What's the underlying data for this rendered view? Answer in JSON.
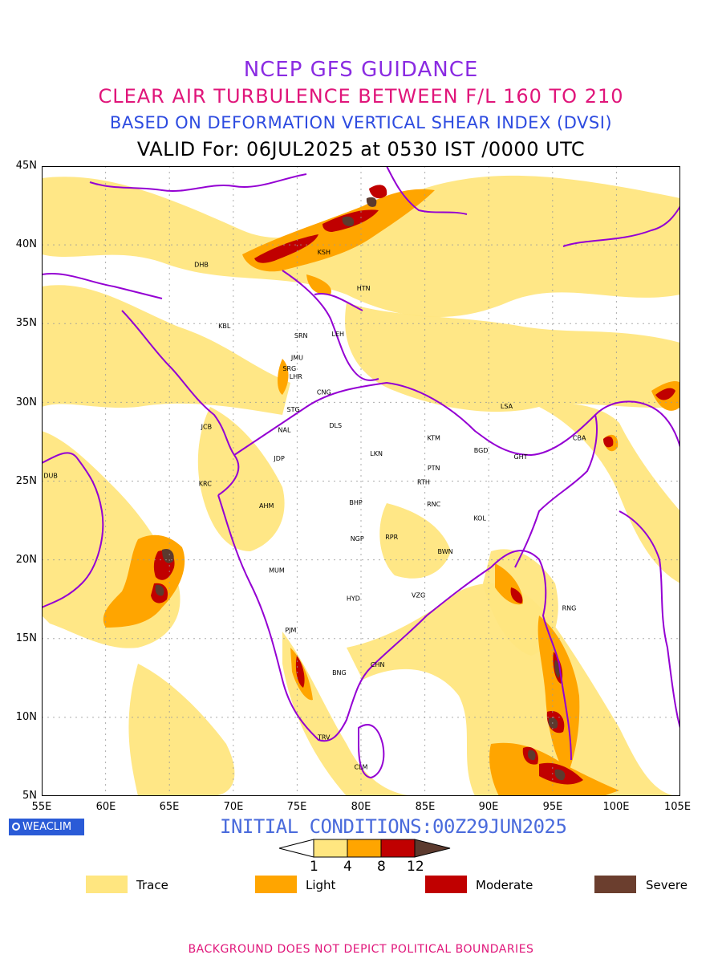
{
  "header": {
    "title": "NCEP GFS GUIDANCE",
    "subtitle": "CLEAR AIR TURBULENCE BETWEEN F/L 160 TO 210",
    "index_line": "BASED ON DEFORMATION VERTICAL SHEAR INDEX (DVSI)",
    "valid_line": "VALID For: 06JUL2025 at 0530 IST /0000 UTC"
  },
  "map": {
    "lat_labels": [
      "45N",
      "40N",
      "35N",
      "30N",
      "25N",
      "20N",
      "15N",
      "10N",
      "5N"
    ],
    "lon_labels": [
      "55E",
      "60E",
      "65E",
      "70E",
      "75E",
      "80E",
      "85E",
      "90E",
      "95E",
      "100E",
      "105E"
    ],
    "lon_range": [
      55,
      105
    ],
    "lat_range": [
      5,
      45
    ],
    "boundary_color": "#9400d3",
    "cities": [
      {
        "code": "KSH",
        "lon": 77.1,
        "lat": 39.4
      },
      {
        "code": "DHB",
        "lon": 67.5,
        "lat": 38.6
      },
      {
        "code": "HTN",
        "lon": 80.2,
        "lat": 37.1
      },
      {
        "code": "KBL",
        "lon": 69.3,
        "lat": 34.7
      },
      {
        "code": "SRN",
        "lon": 75.3,
        "lat": 34.1
      },
      {
        "code": "LEH",
        "lon": 78.2,
        "lat": 34.2
      },
      {
        "code": "JMU",
        "lon": 75.0,
        "lat": 32.7
      },
      {
        "code": "SRG",
        "lon": 74.4,
        "lat": 32.0
      },
      {
        "code": "LHR",
        "lon": 74.9,
        "lat": 31.5
      },
      {
        "code": "CNG",
        "lon": 77.1,
        "lat": 30.5
      },
      {
        "code": "LSA",
        "lon": 91.4,
        "lat": 29.6
      },
      {
        "code": "STG",
        "lon": 74.7,
        "lat": 29.4
      },
      {
        "code": "JCB",
        "lon": 67.9,
        "lat": 28.3
      },
      {
        "code": "DLS",
        "lon": 78.0,
        "lat": 28.4
      },
      {
        "code": "NAL",
        "lon": 74.0,
        "lat": 28.1
      },
      {
        "code": "KTM",
        "lon": 85.7,
        "lat": 27.6
      },
      {
        "code": "CBA",
        "lon": 97.1,
        "lat": 27.6
      },
      {
        "code": "BGD",
        "lon": 89.4,
        "lat": 26.8
      },
      {
        "code": "GHT",
        "lon": 92.5,
        "lat": 26.4
      },
      {
        "code": "LKN",
        "lon": 81.2,
        "lat": 26.6
      },
      {
        "code": "JDP",
        "lon": 73.6,
        "lat": 26.3
      },
      {
        "code": "PTN",
        "lon": 85.7,
        "lat": 25.7
      },
      {
        "code": "DUB",
        "lon": 55.7,
        "lat": 25.2
      },
      {
        "code": "KRC",
        "lon": 67.8,
        "lat": 24.7
      },
      {
        "code": "RTH",
        "lon": 84.9,
        "lat": 24.8
      },
      {
        "code": "RNC",
        "lon": 85.7,
        "lat": 23.4
      },
      {
        "code": "BHP",
        "lon": 79.6,
        "lat": 23.5
      },
      {
        "code": "AHM",
        "lon": 72.6,
        "lat": 23.3
      },
      {
        "code": "KOL",
        "lon": 89.3,
        "lat": 22.5
      },
      {
        "code": "NGP",
        "lon": 79.7,
        "lat": 21.2
      },
      {
        "code": "RPR",
        "lon": 82.4,
        "lat": 21.3
      },
      {
        "code": "BWN",
        "lon": 86.6,
        "lat": 20.4
      },
      {
        "code": "MUM",
        "lon": 73.4,
        "lat": 19.2
      },
      {
        "code": "HYD",
        "lon": 79.4,
        "lat": 17.4
      },
      {
        "code": "VZG",
        "lon": 84.5,
        "lat": 17.6
      },
      {
        "code": "RNG",
        "lon": 96.3,
        "lat": 16.8
      },
      {
        "code": "PJM",
        "lon": 74.5,
        "lat": 15.4
      },
      {
        "code": "CHN",
        "lon": 81.3,
        "lat": 13.2
      },
      {
        "code": "BNG",
        "lon": 78.3,
        "lat": 12.7
      },
      {
        "code": "TRV",
        "lon": 77.1,
        "lat": 8.6
      },
      {
        "code": "CLM",
        "lon": 80.0,
        "lat": 6.7
      }
    ]
  },
  "initial_conditions": "INITIAL CONDITIONS:00Z29JUN2025",
  "branding": {
    "logo_text": "WEACLIM"
  },
  "colorbar": {
    "ticks": [
      "1",
      "4",
      "8",
      "12"
    ],
    "colors": [
      "#ffe680",
      "#ffa500",
      "#c00000",
      "#5c3a2e"
    ]
  },
  "legend": [
    {
      "label": "Trace",
      "color": "#ffe680"
    },
    {
      "label": "Light",
      "color": "#ffa500"
    },
    {
      "label": "Moderate",
      "color": "#c00000"
    },
    {
      "label": "Severe",
      "color": "#6b3e2e"
    }
  ],
  "footer": "BACKGROUND DOES NOT DEPICT POLITICAL BOUNDARIES"
}
